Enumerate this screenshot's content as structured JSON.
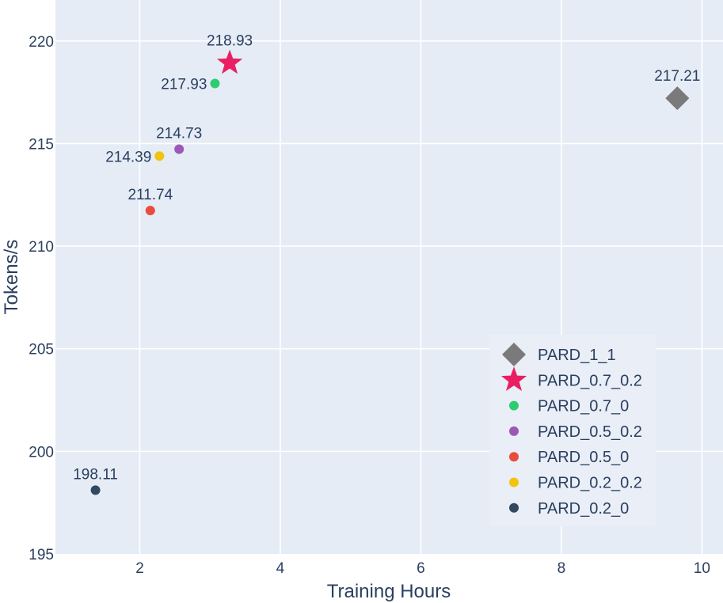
{
  "chart_data": {
    "type": "scatter",
    "xlabel": "Training Hours",
    "ylabel": "Tokens/s",
    "xlim": [
      0.8,
      10.3
    ],
    "ylim": [
      195,
      222
    ],
    "xticks": [
      2,
      4,
      6,
      8,
      10
    ],
    "yticks": [
      195,
      200,
      205,
      210,
      215,
      220
    ],
    "grid": true,
    "legend_position": "bottom-right",
    "background_color": "#e5ecf6",
    "series": [
      {
        "name": "PARD_1_1",
        "marker": "diamond",
        "color": "#7a7a7a",
        "x": 9.65,
        "y": 217.21,
        "label": "217.21",
        "label_pos": "top"
      },
      {
        "name": "PARD_0.7_0.2",
        "marker": "star",
        "color": "#ea1f63",
        "x": 3.28,
        "y": 218.93,
        "label": "218.93",
        "label_pos": "top"
      },
      {
        "name": "PARD_0.7_0",
        "marker": "circle",
        "color": "#2ecc71",
        "x": 3.07,
        "y": 217.93,
        "label": "217.93",
        "label_pos": "left"
      },
      {
        "name": "PARD_0.5_0.2",
        "marker": "circle",
        "color": "#9b59b6",
        "x": 2.56,
        "y": 214.73,
        "label": "214.73",
        "label_pos": "top"
      },
      {
        "name": "PARD_0.5_0",
        "marker": "circle",
        "color": "#e74c3c",
        "x": 2.15,
        "y": 211.74,
        "label": "211.74",
        "label_pos": "top"
      },
      {
        "name": "PARD_0.2_0.2",
        "marker": "circle",
        "color": "#f1c40f",
        "x": 2.28,
        "y": 214.39,
        "label": "214.39",
        "label_pos": "left"
      },
      {
        "name": "PARD_0.2_0",
        "marker": "circle",
        "color": "#34495e",
        "x": 1.37,
        "y": 198.11,
        "label": "198.11",
        "label_pos": "top"
      }
    ]
  }
}
